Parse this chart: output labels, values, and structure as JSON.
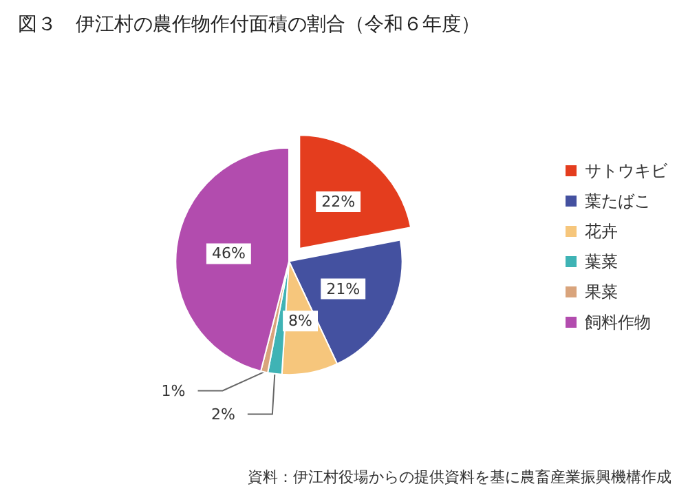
{
  "chart_data": {
    "type": "pie",
    "title": "図３　伊江村の農作物作付面積の割合（令和６年度）",
    "categories": [
      "サトウキビ",
      "葉たばこ",
      "花卉",
      "葉菜",
      "果菜",
      "飼料作物"
    ],
    "values": [
      22,
      21,
      8,
      2,
      1,
      46
    ],
    "value_labels": [
      "22%",
      "21%",
      "8%",
      "2%",
      "1%",
      "46%"
    ],
    "colors": [
      "#e43d1e",
      "#4451a0",
      "#f6c67c",
      "#3fb3b5",
      "#d9a47c",
      "#b24cae"
    ],
    "legend": "right",
    "annotations": [
      "資料：伊江村役場からの提供資料を基に農畜産業振興機構作成"
    ]
  }
}
